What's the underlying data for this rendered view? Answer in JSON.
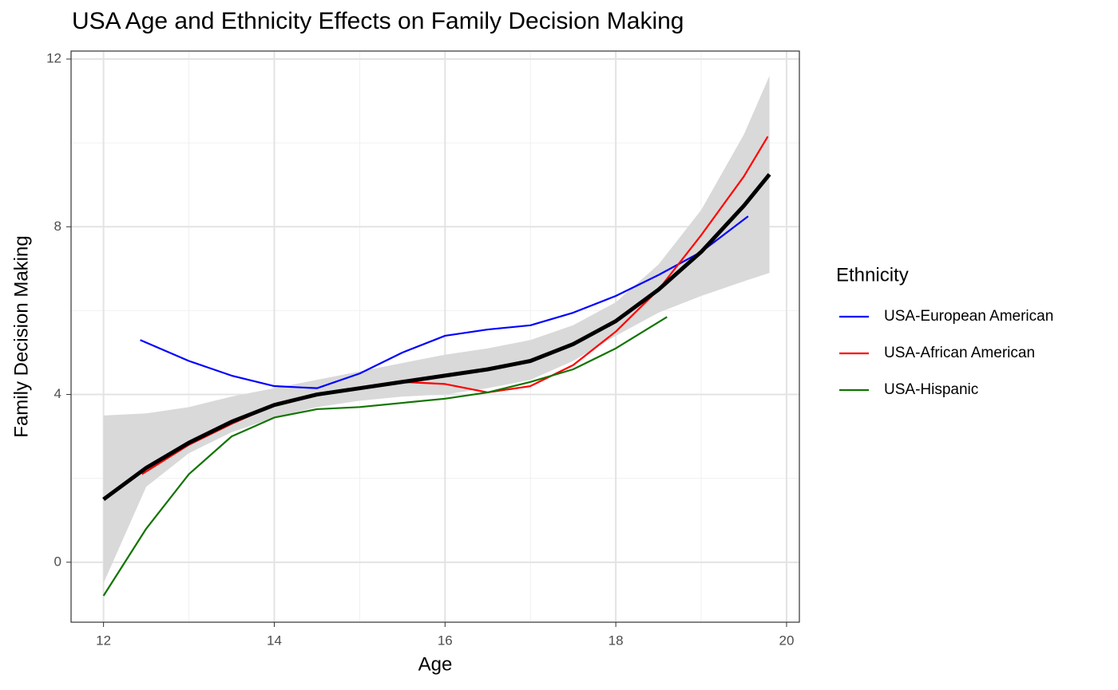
{
  "chart_data": {
    "type": "line",
    "title": "USA Age and Ethnicity Effects on Family Decision Making",
    "x_label": "Age",
    "y_label": "Family Decision Making",
    "legend_title": "Ethnicity",
    "legend_position": "right",
    "xlim": [
      11.62,
      20.15
    ],
    "ylim": [
      -1.43,
      12.19
    ],
    "xticks": [
      12,
      14,
      16,
      18,
      20
    ],
    "yticks": [
      0,
      4,
      8,
      12
    ],
    "x_minor_ticks": [
      13,
      15,
      17,
      19
    ],
    "y_minor_ticks": [
      2,
      6,
      10
    ],
    "grid": true,
    "overall": {
      "color": "#000000",
      "band_color": "#d9d9d9",
      "x": [
        12,
        12.5,
        13,
        13.5,
        14,
        14.5,
        15,
        15.5,
        16,
        16.5,
        17,
        17.5,
        18,
        18.5,
        19,
        19.5,
        19.8
      ],
      "values": [
        1.5,
        2.25,
        2.85,
        3.35,
        3.75,
        4.0,
        4.15,
        4.3,
        4.45,
        4.6,
        4.8,
        5.2,
        5.75,
        6.5,
        7.4,
        8.5,
        9.25
      ],
      "lower": [
        -0.5,
        1.8,
        2.6,
        3.1,
        3.45,
        3.7,
        3.85,
        3.95,
        4.0,
        4.15,
        4.35,
        4.8,
        5.4,
        5.95,
        6.35,
        6.7,
        6.9
      ],
      "upper": [
        3.5,
        3.55,
        3.7,
        3.95,
        4.15,
        4.35,
        4.55,
        4.75,
        4.95,
        5.1,
        5.3,
        5.65,
        6.2,
        7.1,
        8.4,
        10.2,
        11.6
      ]
    },
    "series": [
      {
        "name": "USA-European American",
        "color": "#0000ff",
        "x": [
          12.43,
          13,
          13.5,
          14,
          14.5,
          15,
          15.5,
          16,
          16.5,
          17,
          17.5,
          18,
          18.5,
          19,
          19.55
        ],
        "values": [
          5.3,
          4.8,
          4.45,
          4.2,
          4.15,
          4.5,
          5.0,
          5.4,
          5.55,
          5.65,
          5.95,
          6.35,
          6.85,
          7.4,
          8.25
        ]
      },
      {
        "name": "USA-African American",
        "color": "#ff0000",
        "x": [
          12.45,
          13,
          13.5,
          14,
          14.5,
          15,
          15.5,
          16,
          16.5,
          17,
          17.5,
          18,
          18.5,
          19,
          19.5,
          19.78
        ],
        "values": [
          2.1,
          2.8,
          3.3,
          3.75,
          4.0,
          4.15,
          4.3,
          4.25,
          4.05,
          4.2,
          4.7,
          5.5,
          6.5,
          7.8,
          9.2,
          10.15
        ]
      },
      {
        "name": "USA-Hispanic",
        "color": "#127400",
        "x": [
          12,
          12.5,
          13,
          13.5,
          14,
          14.5,
          15,
          15.5,
          16,
          16.5,
          17,
          17.5,
          18,
          18.6
        ],
        "values": [
          -0.8,
          0.8,
          2.1,
          3.0,
          3.45,
          3.65,
          3.7,
          3.8,
          3.9,
          4.05,
          4.3,
          4.6,
          5.1,
          5.85
        ]
      }
    ]
  }
}
